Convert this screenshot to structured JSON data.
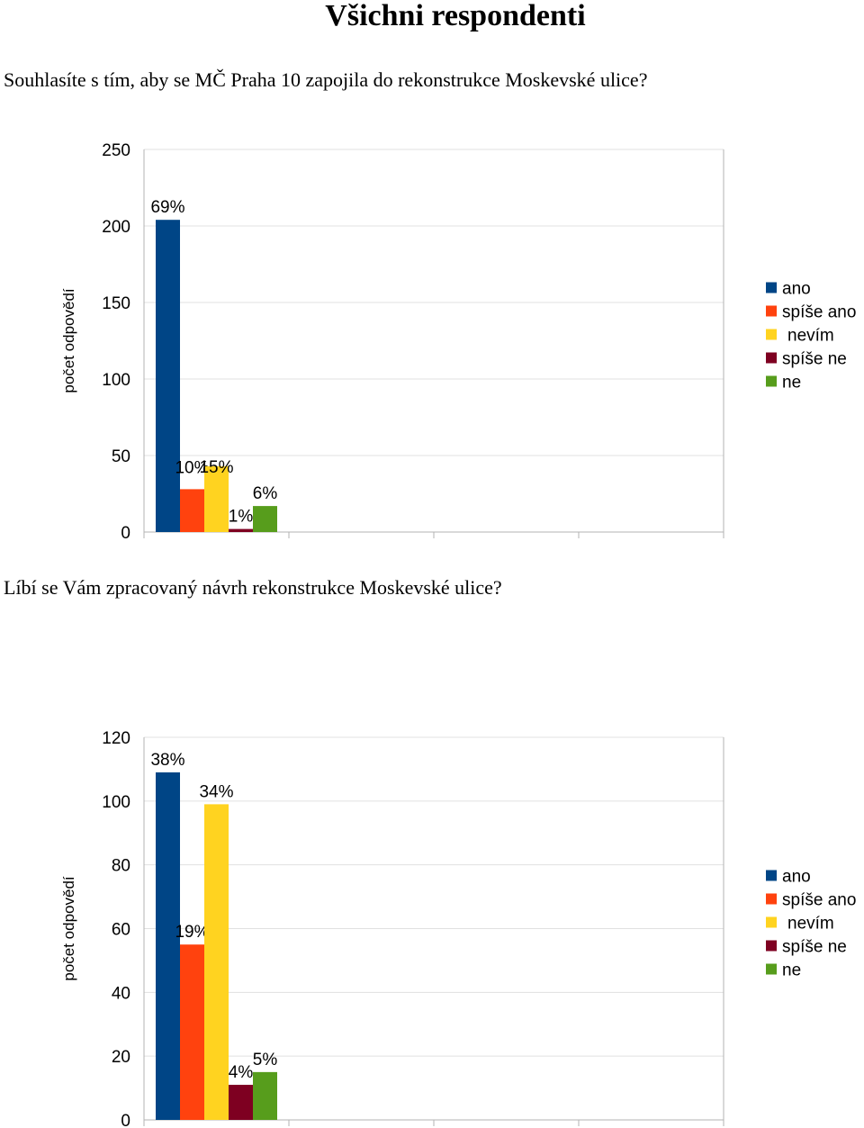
{
  "page": {
    "title": "Všichni respondenti"
  },
  "colors": {
    "ano": "#004586",
    "spise_ano": "#ff420e",
    "nevim": "#ffd320",
    "spise_ne": "#7e0021",
    "ne": "#579d1c",
    "grid": "#e0e0e0",
    "axis": "#b3b3b3"
  },
  "chart_data": [
    {
      "type": "bar",
      "question": "Souhlasíte s tím, aby se MČ Praha 10 zapojila do rekonstrukce Moskevské ulice?",
      "ylabel": "počet odpovědí",
      "ylim": [
        0,
        250
      ],
      "yticks": [
        "0",
        "50",
        "100",
        "150",
        "200",
        "250"
      ],
      "grid": true,
      "legend_position": "right",
      "series": [
        {
          "name": "ano",
          "value": 204,
          "label": "69%"
        },
        {
          "name": "spíše ano",
          "value": 28,
          "label": "10%"
        },
        {
          "name": "nevím",
          "value": 43,
          "label": "15%"
        },
        {
          "name": "spíše ne",
          "value": 2,
          "label": "1%"
        },
        {
          "name": "ne",
          "value": 17,
          "label": "6%"
        }
      ]
    },
    {
      "type": "bar",
      "question": "Líbí se Vám zpracovaný návrh rekonstrukce Moskevské ulice?",
      "ylabel": "počet odpovědí",
      "ylim": [
        0,
        120
      ],
      "yticks": [
        "0",
        "20",
        "40",
        "60",
        "80",
        "100",
        "120"
      ],
      "grid": true,
      "legend_position": "right",
      "series": [
        {
          "name": "ano",
          "value": 109,
          "label": "38%"
        },
        {
          "name": "spíše ano",
          "value": 55,
          "label": "19%"
        },
        {
          "name": "nevím",
          "value": 99,
          "label": "34%"
        },
        {
          "name": "spíše ne",
          "value": 11,
          "label": "4%"
        },
        {
          "name": "ne",
          "value": 15,
          "label": "5%"
        }
      ]
    }
  ]
}
